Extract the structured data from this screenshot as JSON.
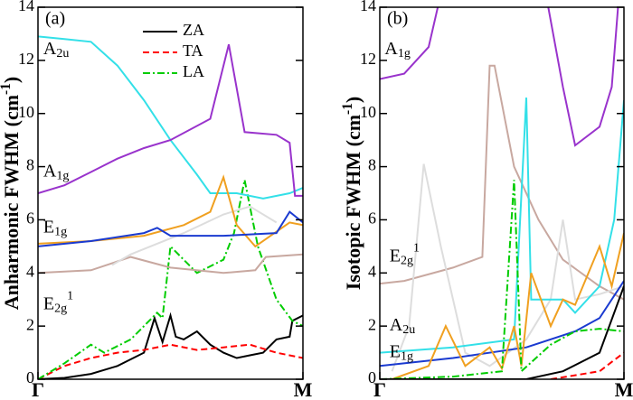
{
  "chart_data": [
    {
      "type": "line",
      "panel": "(a)",
      "ylabel": {
        "text": "Anharmonic FWHM (cm",
        "sup": "-1",
        "tail": ")"
      },
      "xlim": [
        0,
        1
      ],
      "xticks": [
        {
          "value": 0,
          "label": "Γ"
        },
        {
          "value": 1,
          "label": "M"
        }
      ],
      "ylim": [
        0,
        14
      ],
      "yticks": [
        0,
        2,
        4,
        6,
        8,
        10,
        12,
        14
      ],
      "annotations": [
        {
          "base": "A",
          "sub": "2u"
        },
        {
          "base": "A",
          "sub": "1g"
        },
        {
          "base": "E",
          "sub": "1g"
        },
        {
          "base": "E",
          "sub": "2g",
          "sup": "1"
        }
      ],
      "series": [
        {
          "name": "ZA",
          "color": "#000000",
          "dash": "solid",
          "x": [
            0,
            0.1,
            0.2,
            0.3,
            0.4,
            0.44,
            0.47,
            0.5,
            0.52,
            0.55,
            0.6,
            0.65,
            0.7,
            0.75,
            0.8,
            0.85,
            0.9,
            0.95,
            0.96,
            1
          ],
          "values": [
            0,
            0.05,
            0.2,
            0.5,
            1.0,
            2.3,
            1.4,
            2.4,
            1.6,
            1.5,
            1.8,
            1.3,
            1.0,
            0.8,
            0.9,
            1.0,
            1.5,
            1.6,
            2.2,
            2.4
          ]
        },
        {
          "name": "TA",
          "color": "#ff0000",
          "dash": "dashed",
          "x": [
            0,
            0.1,
            0.2,
            0.3,
            0.4,
            0.5,
            0.6,
            0.7,
            0.8,
            0.9,
            1
          ],
          "values": [
            0,
            0.5,
            0.8,
            1.0,
            1.1,
            1.3,
            1.1,
            1.2,
            1.3,
            1.0,
            0.8
          ]
        },
        {
          "name": "LA",
          "color": "#00cc00",
          "dash": "dashdot",
          "x": [
            0,
            0.1,
            0.2,
            0.25,
            0.35,
            0.45,
            0.47,
            0.5,
            0.6,
            0.7,
            0.74,
            0.78,
            0.83,
            0.9,
            0.96,
            1
          ],
          "values": [
            0,
            0.6,
            1.3,
            1.0,
            1.5,
            2.5,
            2.3,
            5.0,
            4.0,
            4.5,
            5.5,
            7.5,
            5.0,
            3.0,
            2.2,
            2.0
          ]
        },
        {
          "color": "#33e0e8",
          "dash": "solid",
          "x": [
            0,
            0.1,
            0.2,
            0.3,
            0.4,
            0.5,
            0.6,
            0.65,
            0.75,
            0.85,
            0.95,
            1
          ],
          "values": [
            12.9,
            12.8,
            12.7,
            11.8,
            10.5,
            9.0,
            7.7,
            7.0,
            7.0,
            6.8,
            7.0,
            7.2
          ]
        },
        {
          "color": "#9933cc",
          "dash": "solid",
          "x": [
            0,
            0.1,
            0.2,
            0.3,
            0.4,
            0.5,
            0.65,
            0.72,
            0.78,
            0.9,
            0.95,
            0.97,
            1
          ],
          "values": [
            7.0,
            7.3,
            7.8,
            8.3,
            8.7,
            9.0,
            9.8,
            12.6,
            9.3,
            9.2,
            8.9,
            6.9,
            6.9
          ]
        },
        {
          "color": "#c8a8a0",
          "dash": "solid",
          "x": [
            0,
            0.2,
            0.35,
            0.5,
            0.7,
            0.82,
            0.86,
            1
          ],
          "values": [
            4.0,
            4.1,
            4.6,
            4.2,
            4.0,
            4.1,
            4.6,
            4.7
          ]
        },
        {
          "color": "#dddddd",
          "dash": "solid",
          "x": [
            0.28,
            0.35,
            0.55,
            0.7,
            0.8,
            0.9
          ],
          "values": [
            4.3,
            4.7,
            5.5,
            6.2,
            6.5,
            5.9
          ]
        },
        {
          "color": "#f0a020",
          "dash": "solid",
          "x": [
            0,
            0.2,
            0.4,
            0.55,
            0.65,
            0.7,
            0.75,
            0.82,
            0.95,
            1
          ],
          "values": [
            5.1,
            5.2,
            5.4,
            5.8,
            6.3,
            7.6,
            5.8,
            5.0,
            5.9,
            5.8
          ]
        },
        {
          "color": "#1a3ad0",
          "dash": "solid",
          "x": [
            0,
            0.2,
            0.4,
            0.45,
            0.5,
            0.7,
            0.9,
            0.95,
            1
          ],
          "values": [
            5.0,
            5.2,
            5.5,
            5.7,
            5.4,
            5.4,
            5.5,
            6.3,
            5.9
          ]
        }
      ]
    },
    {
      "type": "line",
      "panel": "(b)",
      "ylabel": {
        "text": "Isotopic FWHM (cm",
        "sup": "-1",
        "tail": ")"
      },
      "xlim": [
        0,
        1
      ],
      "xticks": [
        {
          "value": 0,
          "label": "Γ"
        },
        {
          "value": 1,
          "label": "M"
        }
      ],
      "ylim": [
        0,
        14
      ],
      "yticks": [
        0,
        2,
        4,
        6,
        8,
        10,
        12,
        14
      ],
      "annotations": [
        {
          "base": "A",
          "sub": "1g"
        },
        {
          "base": "E",
          "sub": "2g",
          "sup": "1"
        },
        {
          "base": "A",
          "sub": "2u"
        },
        {
          "base": "E",
          "sub": "1g"
        }
      ],
      "series": [
        {
          "color": "#9933cc",
          "dash": "solid",
          "x": [
            0,
            0.1,
            0.2,
            0.25,
            0.62,
            0.68,
            0.75,
            0.8,
            0.9,
            0.95,
            0.98
          ],
          "values": [
            11.3,
            11.5,
            12.5,
            14.5,
            null,
            14.5,
            11.0,
            8.8,
            9.5,
            11.0,
            14.5
          ]
        },
        {
          "color": "#c8a8a0",
          "dash": "solid",
          "x": [
            0,
            0.1,
            0.3,
            0.42,
            0.45,
            0.47,
            0.55,
            0.65,
            0.75,
            0.9,
            1
          ],
          "values": [
            3.6,
            3.7,
            4.2,
            4.6,
            11.8,
            11.8,
            8.0,
            6.0,
            4.5,
            3.5,
            3.0
          ]
        },
        {
          "color": "#dddddd",
          "dash": "solid",
          "x": [
            0.05,
            0.12,
            0.18,
            0.25,
            0.35,
            0.45,
            0.6,
            0.7,
            0.75,
            0.8,
            0.9,
            1
          ],
          "values": [
            0.3,
            2.0,
            8.1,
            5.0,
            1.0,
            0.5,
            1.5,
            3.0,
            6.0,
            3.0,
            3.2,
            3.5
          ]
        },
        {
          "color": "#33e0e8",
          "dash": "solid",
          "x": [
            0,
            0.3,
            0.55,
            0.6,
            0.62,
            0.75,
            0.8,
            0.9,
            0.96,
            1
          ],
          "values": [
            1.0,
            1.2,
            1.5,
            10.6,
            3.0,
            3.0,
            2.5,
            3.5,
            6.0,
            10.5
          ]
        },
        {
          "color": "#1a3ad0",
          "dash": "solid",
          "x": [
            0,
            0.3,
            0.6,
            0.8,
            0.9,
            1
          ],
          "values": [
            0.5,
            0.8,
            1.2,
            1.8,
            2.3,
            3.7
          ]
        },
        {
          "color": "#f0a020",
          "dash": "solid",
          "x": [
            0.05,
            0.2,
            0.27,
            0.35,
            0.45,
            0.5,
            0.55,
            0.58,
            0.62,
            0.7,
            0.75,
            0.8,
            0.9,
            0.95,
            1
          ],
          "values": [
            0,
            0.5,
            2.0,
            0.5,
            1.2,
            0.4,
            2.0,
            0.5,
            4.0,
            2.0,
            3.0,
            2.8,
            5.0,
            3.5,
            5.5
          ]
        },
        {
          "color": "#00cc00",
          "dash": "dashdot",
          "x": [
            0,
            0.3,
            0.5,
            0.55,
            0.58,
            0.7,
            0.8,
            0.9,
            1
          ],
          "values": [
            0,
            0.1,
            0.3,
            7.5,
            0.3,
            1.3,
            1.8,
            1.9,
            1.8
          ]
        },
        {
          "color": "#000000",
          "dash": "solid",
          "x": [
            0,
            0.6,
            0.75,
            0.9,
            1
          ],
          "values": [
            0,
            0,
            0.3,
            1.0,
            3.5
          ]
        },
        {
          "color": "#ff0000",
          "dash": "dashed",
          "x": [
            0.7,
            0.9,
            1
          ],
          "values": [
            0,
            0.3,
            1.0
          ]
        }
      ]
    }
  ]
}
